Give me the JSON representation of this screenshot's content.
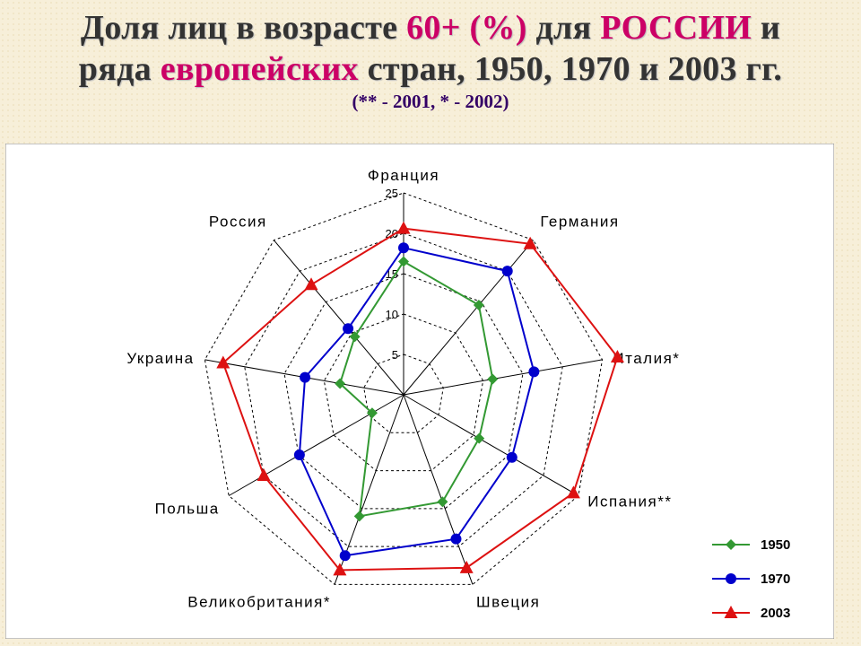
{
  "title": {
    "line1_a": "Доля лиц в возрасте ",
    "line1_b": "60+ (%)",
    "line1_c": " для ",
    "line1_d": "РОССИИ",
    "line1_e": " и",
    "line2_a": "ряда ",
    "line2_b": "европейских",
    "line2_c": " стран, 1950, 1970 и 2003 гг.",
    "subtitle": "(** - 2001, * - 2002)"
  },
  "colors": {
    "accent": "#cc0066",
    "series": [
      "#339933",
      "#0000cc",
      "#dd1111"
    ]
  },
  "chart_data": {
    "type": "radar",
    "categories": [
      "Франция",
      "Германия",
      "Италия*",
      "Испания**",
      "Швеция",
      "Великобритания*",
      "Польша",
      "Украина",
      "Россия"
    ],
    "rlim": [
      0,
      25
    ],
    "ticks": [
      "5",
      "10",
      "15",
      "20",
      "25"
    ],
    "tick_values": [
      5,
      10,
      15,
      20,
      25
    ],
    "series": [
      {
        "name": "1950",
        "marker": "diamond",
        "values": [
          16.5,
          14.5,
          11.2,
          10.8,
          14.1,
          16.0,
          4.5,
          8.0,
          9.4
        ]
      },
      {
        "name": "1970",
        "marker": "circle",
        "values": [
          18.2,
          20.0,
          16.4,
          15.5,
          19.0,
          21.2,
          14.9,
          12.4,
          10.7
        ]
      },
      {
        "name": "2003",
        "marker": "triangle",
        "values": [
          20.6,
          24.4,
          26.9,
          24.3,
          22.8,
          23.1,
          20.0,
          22.7,
          17.8
        ]
      }
    ],
    "grid": true,
    "legend": "bottom-right"
  }
}
